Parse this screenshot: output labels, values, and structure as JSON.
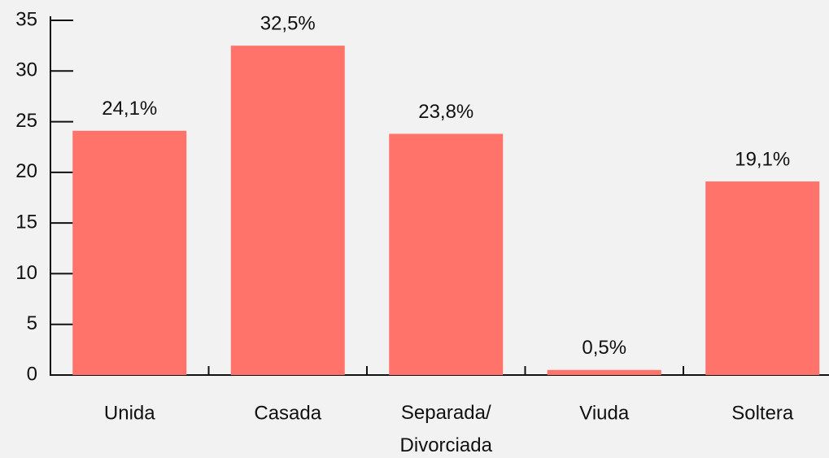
{
  "chart_data": {
    "type": "bar",
    "categories": [
      "Unida",
      "Casada",
      "Separada/ Divorciada",
      "Viuda",
      "Soltera"
    ],
    "values": [
      24.1,
      32.5,
      23.8,
      0.5,
      19.1
    ],
    "value_labels": [
      "24,1%",
      "32,5%",
      "23,8%",
      "0,5%",
      "19,1%"
    ],
    "color": "#ff736b",
    "ylim": [
      0,
      35
    ],
    "yticks": [
      0,
      5,
      10,
      15,
      20,
      25,
      30,
      35
    ],
    "grid": false
  }
}
